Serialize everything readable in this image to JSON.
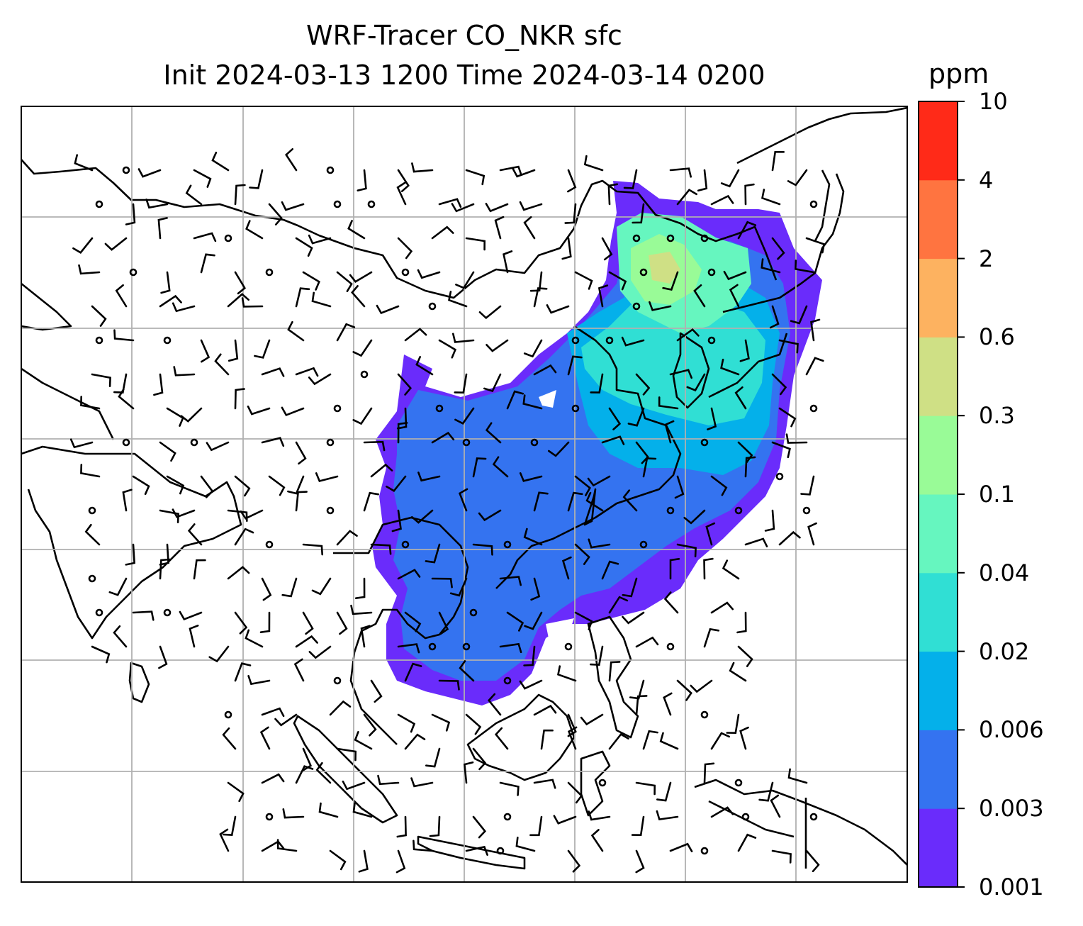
{
  "title": {
    "line1": "WRF-Tracer CO_NKR sfc",
    "line2": "Init 2024-03-13 1200 Time 2024-03-14 0200"
  },
  "colorbar": {
    "unit": "ppm",
    "levels": [
      "0.001",
      "0.003",
      "0.006",
      "0.02",
      "0.04",
      "0.1",
      "0.3",
      "0.6",
      "2",
      "4",
      "10"
    ],
    "colors": [
      "#6a2cfb",
      "#3473f0",
      "#04b0ea",
      "#30dfd4",
      "#66f6bf",
      "#99fb97",
      "#cfe085",
      "#fdb260",
      "#ff7440",
      "#ff2a18"
    ]
  },
  "map": {
    "background": "#ffffff",
    "gridlines": true,
    "coastline_color": "#000000",
    "overlay": "wind barbs"
  }
}
